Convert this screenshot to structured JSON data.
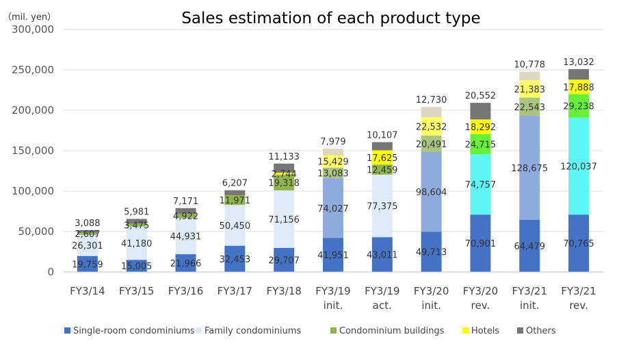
{
  "chart_data": {
    "type": "bar",
    "stacked": true,
    "title": "Sales estimation of each product type",
    "unit_label": "（mil. yen）",
    "ylim": [
      0,
      300000
    ],
    "yticks": [
      0,
      50000,
      100000,
      150000,
      200000,
      250000,
      300000
    ],
    "ytick_labels": [
      "0",
      "50,000",
      "100,000",
      "150,000",
      "200,000",
      "250,000",
      "300,000"
    ],
    "grid": true,
    "legend_position": "bottom",
    "categories": [
      [
        "FY3/14"
      ],
      [
        "FY3/15"
      ],
      [
        "FY3/16"
      ],
      [
        "FY3/17"
      ],
      [
        "FY3/18"
      ],
      [
        "FY3/19",
        "init."
      ],
      [
        "FY3/19",
        "act."
      ],
      [
        "FY3/20",
        "init."
      ],
      [
        "FY3/20",
        "rev."
      ],
      [
        "FY3/21",
        "init."
      ],
      [
        "FY3/21",
        "rev."
      ]
    ],
    "series": [
      {
        "name": "Single-room condominiums",
        "legend_color": "#4472c4",
        "values": [
          19759,
          15005,
          21966,
          32453,
          29707,
          41951,
          43011,
          49713,
          70901,
          64479,
          70765
        ],
        "labels": [
          "19,759",
          "15,005",
          "21,966",
          "32,453",
          "29,707",
          "41,951",
          "43,011",
          "49,713",
          "70,901",
          "64,479",
          "70,765"
        ],
        "colors": [
          "#4472c4",
          "#4472c4",
          "#4472c4",
          "#4472c4",
          "#4472c4",
          "#4472c4",
          "#4472c4",
          "#4472c4",
          "#4472c4",
          "#4472c4",
          "#4472c4"
        ]
      },
      {
        "name": "Family condominiums",
        "legend_color": "#deebf7",
        "values": [
          26301,
          41180,
          44931,
          50450,
          71156,
          74027,
          77375,
          98604,
          74757,
          128675,
          120037
        ],
        "labels": [
          "26,301",
          "41,180",
          "44,931",
          "50,450",
          "71,156",
          "74,027",
          "77,375",
          "98,604",
          "74,757",
          "128,675",
          "120,037"
        ],
        "colors": [
          "#deebf7",
          "#deebf7",
          "#deebf7",
          "#deebf7",
          "#deebf7",
          "#8faadc",
          "#deebf7",
          "#8faadc",
          "#5ef5f5",
          "#8faadc",
          "#5ef5f5"
        ]
      },
      {
        "name": "Condominium buildings",
        "legend_color": "#8fb54a",
        "values": [
          2607,
          3475,
          4922,
          11971,
          19318,
          13083,
          12459,
          20491,
          24715,
          22543,
          29238
        ],
        "labels": [
          "2,607",
          "3,475",
          "4,922",
          "11,971",
          "19,318",
          "13,083",
          "12,459",
          "20,491",
          "24,715",
          "22,543",
          "29,238"
        ],
        "colors": [
          "#8fb54a",
          "#8fb54a",
          "#8fb54a",
          "#8fb54a",
          "#8fb54a",
          "#a9c47f",
          "#8fb54a",
          "#a9c47f",
          "#66f03c",
          "#a9c47f",
          "#66f03c"
        ]
      },
      {
        "name": "Hotels",
        "legend_color": "#ffff00",
        "values": [
          0,
          0,
          0,
          0,
          2744,
          15429,
          17625,
          22532,
          18292,
          21383,
          17888
        ],
        "labels": [
          "",
          "",
          "",
          "",
          "2,744",
          "15,429",
          "17,625",
          "22,532",
          "18,292",
          "21,383",
          "17,888"
        ],
        "colors": [
          "#ffff00",
          "#ffff00",
          "#ffff00",
          "#ffff00",
          "#ffff00",
          "#ffff66",
          "#ffff00",
          "#ffff66",
          "#ffff00",
          "#ffff66",
          "#ffff00"
        ]
      },
      {
        "name": "Others",
        "legend_color": "#767676",
        "values": [
          3088,
          5981,
          7171,
          6207,
          11133,
          7979,
          10107,
          12730,
          20552,
          10778,
          13032
        ],
        "labels": [
          "3,088",
          "5,981",
          "7,171",
          "6,207",
          "11,133",
          "7,979",
          "10,107",
          "12,730",
          "20,552",
          "10,778",
          "13,032"
        ],
        "colors": [
          "#767676",
          "#767676",
          "#767676",
          "#767676",
          "#767676",
          "#ddd6c1",
          "#767676",
          "#ddd6c1",
          "#767676",
          "#ddd6c1",
          "#767676"
        ]
      }
    ]
  }
}
